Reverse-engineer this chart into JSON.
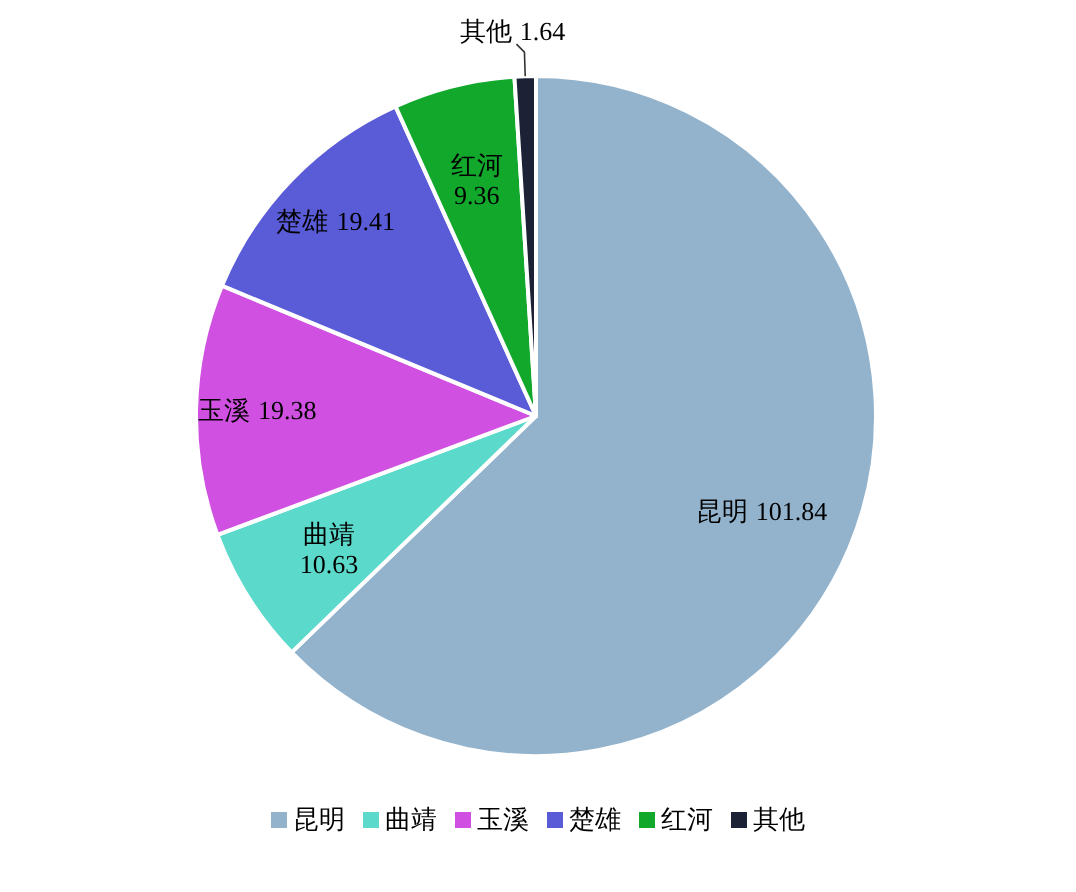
{
  "chart_data": {
    "type": "pie",
    "categories": [
      "昆明",
      "曲靖",
      "玉溪",
      "楚雄",
      "红河",
      "其他"
    ],
    "values": [
      101.84,
      10.63,
      19.38,
      19.41,
      9.36,
      1.64
    ],
    "colors": [
      "#93b3cd",
      "#5bd9ca",
      "#d051e1",
      "#5a5bd7",
      "#12a82c",
      "#1c2136"
    ],
    "data_labels": true,
    "legend": "bottom"
  }
}
